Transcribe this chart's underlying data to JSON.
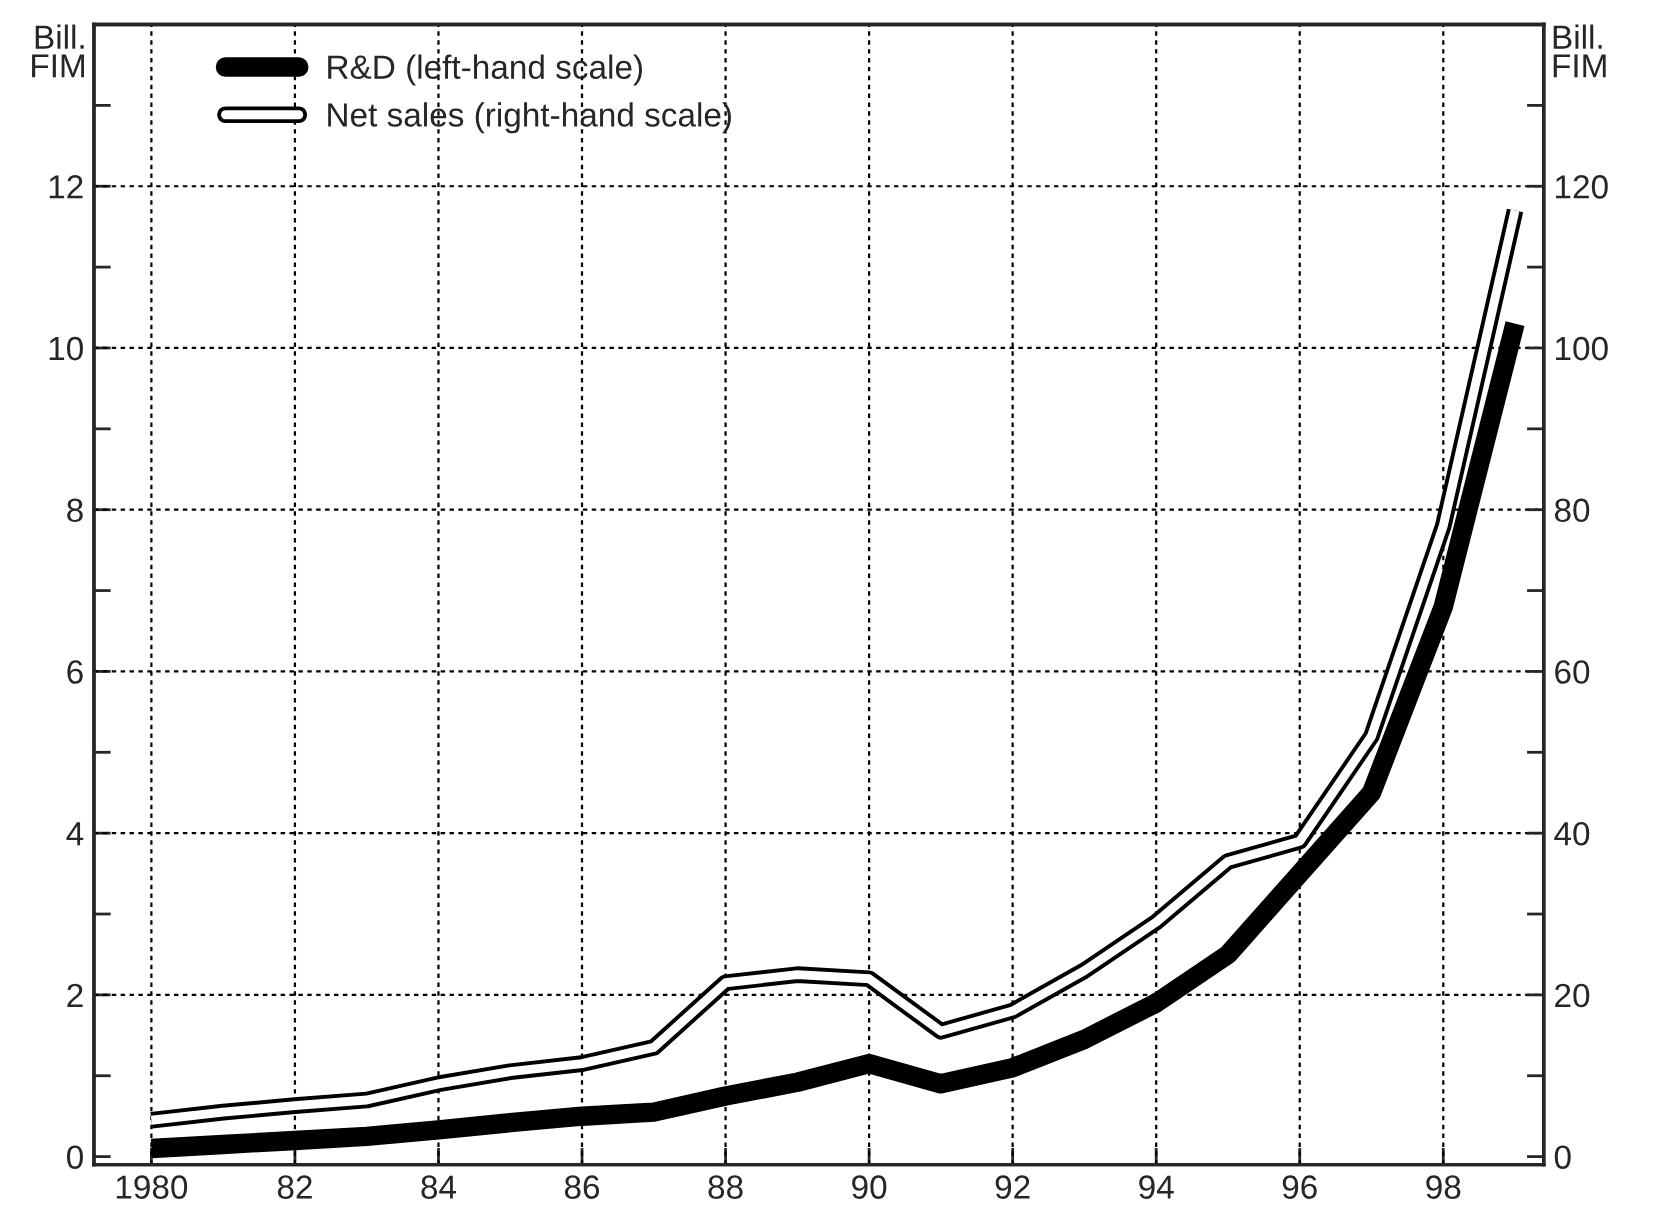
{
  "chart_data": {
    "type": "line",
    "ylabel": "Bill.\nFIM",
    "y2label": "Bill.\nFIM",
    "x": [
      1980,
      1981,
      1982,
      1983,
      1984,
      1985,
      1986,
      1987,
      1988,
      1989,
      1990,
      1991,
      1992,
      1993,
      1994,
      1995,
      1996,
      1997,
      1998,
      1999
    ],
    "series": [
      {
        "name": "R&D (left-hand scale)",
        "color": "#000000",
        "values": [
          0.1,
          0.15,
          0.2,
          0.25,
          0.33,
          0.42,
          0.5,
          0.55,
          0.75,
          0.92,
          1.15,
          0.9,
          1.1,
          1.45,
          1.9,
          2.5,
          3.5,
          4.5,
          6.8,
          10.3
        ]
      },
      {
        "name": "Net sales (right-hand scale)",
        "color": "#000000",
        "axis": "y2",
        "values": [
          4.5,
          5.5,
          6.3,
          7,
          9,
          10.5,
          11.5,
          13.5,
          21.5,
          22.5,
          22,
          15.5,
          18,
          23,
          29,
          36.5,
          39,
          52,
          78,
          117
        ]
      }
    ],
    "xlim": [
      1979.2,
      1999.4
    ],
    "xticks": [
      1980,
      {
        "value": 1982,
        "label": "82"
      },
      {
        "value": 1984,
        "label": "84"
      },
      {
        "value": 1986,
        "label": "86"
      },
      {
        "value": 1988,
        "label": "88"
      },
      {
        "value": 1990,
        "label": "90"
      },
      {
        "value": 1992,
        "label": "92"
      },
      {
        "value": 1994,
        "label": "94"
      },
      {
        "value": 1996,
        "label": "96"
      },
      {
        "value": 1998,
        "label": "98"
      }
    ],
    "ylim": [
      -0.1,
      14
    ],
    "yticks": [
      0,
      {
        "value": 1,
        "label": null
      },
      2,
      {
        "value": 3,
        "label": null
      },
      4,
      {
        "value": 5,
        "label": null
      },
      6,
      {
        "value": 7,
        "label": null
      },
      8,
      {
        "value": 9,
        "label": null
      },
      10,
      {
        "value": 11,
        "label": null
      },
      12,
      {
        "value": 13,
        "label": null
      }
    ],
    "y2lim": [
      -1,
      140
    ],
    "y2ticks": [
      0,
      {
        "value": 10,
        "label": null
      },
      20,
      {
        "value": 30,
        "label": null
      },
      40,
      {
        "value": 50,
        "label": null
      },
      60,
      {
        "value": 70,
        "label": null
      },
      80,
      {
        "value": 90,
        "label": null
      },
      100,
      {
        "value": 110,
        "label": null
      },
      120,
      {
        "value": 130,
        "label": null
      }
    ],
    "grid": true,
    "legend": "top left",
    "marker": "none",
    "line_style": "solid"
  }
}
